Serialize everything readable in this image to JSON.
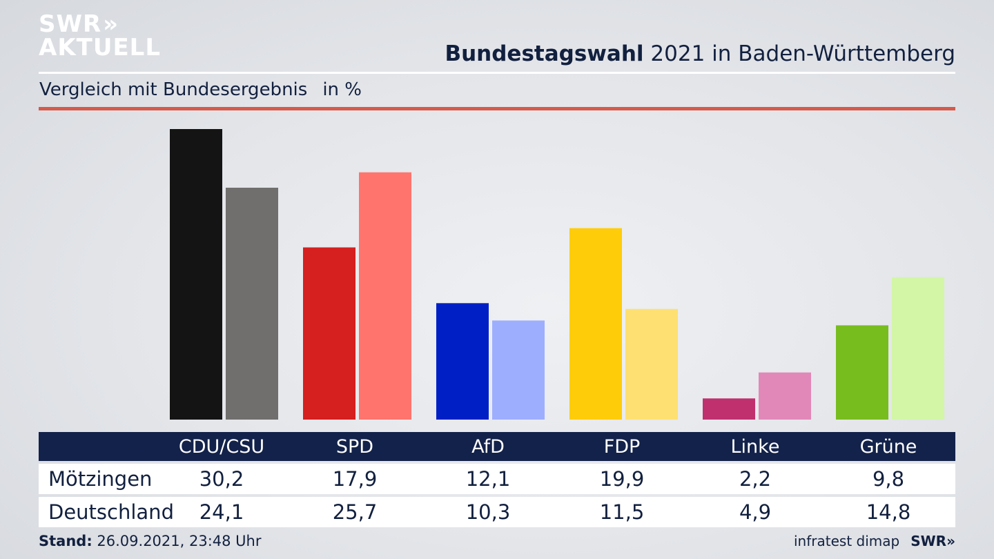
{
  "logo": {
    "line1": "SWR",
    "line2": "AKTUELL",
    "chevrons": "»"
  },
  "header": {
    "title_bold": "Bundestagswahl",
    "title_rest": " 2021 in Baden-Württemberg",
    "subtitle": "Vergleich mit Bundesergebnis",
    "unit": "in %"
  },
  "colors": {
    "navy": "#13224a",
    "red_rule": "#d65a4a",
    "primary": [
      "#141414",
      "#d61f1f",
      "#0020c6",
      "#ffcc0a",
      "#c0306f",
      "#78bd1e"
    ],
    "secondary": [
      "#706f6d",
      "#ff746c",
      "#9eaeff",
      "#fde071",
      "#e188b8",
      "#d3f6a6"
    ]
  },
  "chart_data": {
    "type": "bar",
    "categories": [
      "CDU/CSU",
      "SPD",
      "AfD",
      "FDP",
      "Linke",
      "Grüne"
    ],
    "series": [
      {
        "name": "Mötzingen",
        "values": [
          30.2,
          17.9,
          12.1,
          19.9,
          2.2,
          9.8
        ]
      },
      {
        "name": "Deutschland",
        "values": [
          24.1,
          25.7,
          10.3,
          11.5,
          4.9,
          14.8
        ]
      }
    ],
    "value_labels": {
      "Mötzingen": [
        "30,2",
        "17,9",
        "12,1",
        "19,9",
        "2,2",
        "9,8"
      ],
      "Deutschland": [
        "24,1",
        "25,7",
        "10,3",
        "11,5",
        "4,9",
        "14,8"
      ]
    },
    "ylim": [
      0,
      31
    ],
    "grid": false,
    "legend": "table-below"
  },
  "footer": {
    "stand_label": "Stand:",
    "stand_value": " 26.09.2021, 23:48 Uhr",
    "source": "infratest dimap",
    "brand": "SWR»"
  }
}
